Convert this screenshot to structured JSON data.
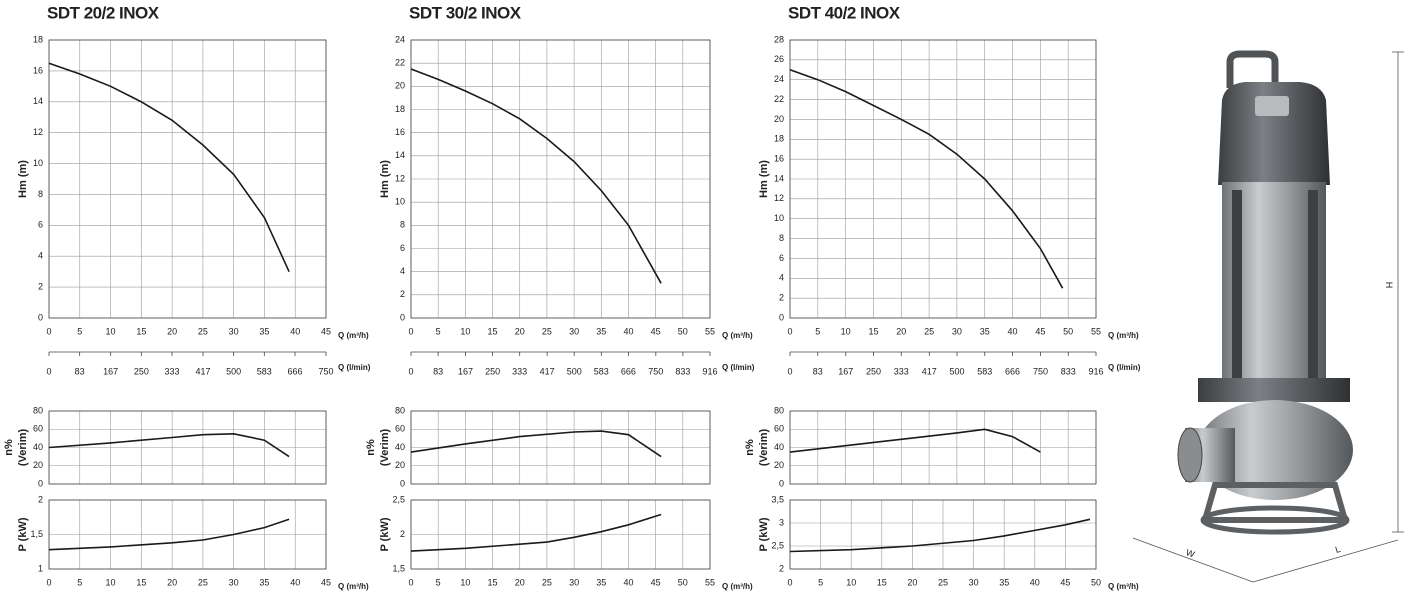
{
  "chart_data": [
    {
      "type": "line",
      "title": "SDT 20/2 INOX",
      "xlabel": "Q (m³/h)",
      "ylabel": [
        "Hm (m)"
      ],
      "color": "#1a1a1a",
      "grid": true,
      "x": [
        0,
        5,
        10,
        15,
        20,
        25,
        30,
        35,
        39
      ],
      "values": [
        16.5,
        15.8,
        15,
        14,
        12.8,
        11.2,
        9.3,
        6.5,
        3
      ],
      "xlim": [
        0,
        45
      ],
      "xticks": [
        0,
        5,
        10,
        15,
        20,
        25,
        30,
        35,
        40,
        45
      ],
      "ylim": [
        0,
        18
      ],
      "yticks": [
        0,
        2,
        4,
        6,
        8,
        10,
        12,
        14,
        16,
        18
      ],
      "x2label": "Q (l/min)",
      "x2lim": [
        0,
        750
      ],
      "x2ticks": [
        0,
        83,
        167,
        250,
        333,
        417,
        500,
        583,
        666,
        750
      ]
    },
    {
      "type": "line",
      "ylabel": [
        "n%",
        "(Verim)"
      ],
      "color": "#1a1a1a",
      "grid": true,
      "xtick_labels": false,
      "x": [
        0,
        10,
        20,
        25,
        30,
        35,
        39
      ],
      "values": [
        40,
        45,
        51,
        54,
        55,
        48,
        30
      ],
      "xlim": [
        0,
        45
      ],
      "xticks": [
        0,
        5,
        10,
        15,
        20,
        25,
        30,
        35,
        40,
        45
      ],
      "ylim": [
        0,
        80
      ],
      "yticks": [
        0,
        20,
        40,
        60,
        80
      ]
    },
    {
      "type": "line",
      "xlabel": "Q (m³/h)",
      "ylabel": [
        "P  (kW)"
      ],
      "color": "#1a1a1a",
      "grid": true,
      "x": [
        0,
        10,
        20,
        25,
        30,
        35,
        39
      ],
      "values": [
        1.28,
        1.32,
        1.38,
        1.42,
        1.5,
        1.6,
        1.72
      ],
      "xlim": [
        0,
        45
      ],
      "xticks": [
        0,
        5,
        10,
        15,
        20,
        25,
        30,
        35,
        40,
        45
      ],
      "ylim": [
        1,
        2
      ],
      "yticks": [
        1,
        {
          "value": 1.5,
          "label": "1,5"
        },
        2
      ]
    },
    {
      "type": "line",
      "title": "SDT 30/2 INOX",
      "xlabel": "Q (m³/h)",
      "ylabel": [
        "Hm (m)"
      ],
      "color": "#1a1a1a",
      "grid": true,
      "x": [
        0,
        5,
        10,
        15,
        20,
        25,
        30,
        35,
        40,
        43,
        46
      ],
      "values": [
        21.5,
        20.6,
        19.6,
        18.5,
        17.2,
        15.5,
        13.5,
        11,
        8,
        5.5,
        3
      ],
      "xlim": [
        0,
        55
      ],
      "xticks": [
        0,
        5,
        10,
        15,
        20,
        25,
        30,
        35,
        40,
        45,
        50,
        55
      ],
      "ylim": [
        0,
        24
      ],
      "yticks": [
        0,
        2,
        4,
        6,
        8,
        10,
        12,
        14,
        16,
        18,
        20,
        22,
        24
      ],
      "x2label": "Q (l/min)",
      "x2lim": [
        0,
        916
      ],
      "x2ticks": [
        0,
        83,
        167,
        250,
        333,
        417,
        500,
        583,
        666,
        750,
        833,
        916
      ]
    },
    {
      "type": "line",
      "ylabel": [
        "n%",
        "(Verim)"
      ],
      "color": "#1a1a1a",
      "grid": true,
      "xtick_labels": false,
      "x": [
        0,
        10,
        20,
        30,
        35,
        40,
        46
      ],
      "values": [
        35,
        44,
        52,
        57,
        58,
        54,
        30
      ],
      "xlim": [
        0,
        55
      ],
      "xticks": [
        0,
        5,
        10,
        15,
        20,
        25,
        30,
        35,
        40,
        45,
        50,
        55
      ],
      "ylim": [
        0,
        80
      ],
      "yticks": [
        0,
        20,
        40,
        60,
        80
      ]
    },
    {
      "type": "line",
      "xlabel": "Q (m³/h)",
      "ylabel": [
        "P  (kW)"
      ],
      "color": "#1a1a1a",
      "grid": true,
      "x": [
        0,
        10,
        20,
        25,
        30,
        35,
        40,
        46
      ],
      "values": [
        1.76,
        1.8,
        1.86,
        1.89,
        1.96,
        2.04,
        2.14,
        2.29
      ],
      "xlim": [
        0,
        55
      ],
      "xticks": [
        0,
        5,
        10,
        15,
        20,
        25,
        30,
        35,
        40,
        45,
        50,
        55
      ],
      "ylim": [
        1.5,
        2.5
      ],
      "yticks": [
        {
          "value": 1.5,
          "label": "1,5"
        },
        2,
        {
          "value": 2.5,
          "label": "2,5"
        }
      ]
    },
    {
      "type": "line",
      "title": "SDT 40/2 INOX",
      "xlabel": "Q (m³/h)",
      "ylabel": [
        "Hm (m)"
      ],
      "color": "#1a1a1a",
      "grid": true,
      "x": [
        0,
        5,
        10,
        15,
        20,
        25,
        30,
        35,
        40,
        45,
        49
      ],
      "values": [
        25,
        24,
        22.8,
        21.4,
        20,
        18.5,
        16.5,
        14,
        10.8,
        7,
        3
      ],
      "xlim": [
        0,
        55
      ],
      "xticks": [
        0,
        5,
        10,
        15,
        20,
        25,
        30,
        35,
        40,
        45,
        50,
        55
      ],
      "ylim": [
        0,
        28
      ],
      "yticks": [
        0,
        2,
        4,
        6,
        8,
        10,
        12,
        14,
        16,
        18,
        20,
        22,
        24,
        26,
        28
      ],
      "x2label": "Q (l/min)",
      "x2lim": [
        0,
        916
      ],
      "x2ticks": [
        0,
        83,
        167,
        250,
        333,
        417,
        500,
        583,
        666,
        750,
        833,
        916
      ]
    },
    {
      "type": "line",
      "ylabel": [
        "n%",
        "(Verim)"
      ],
      "color": "#1a1a1a",
      "grid": true,
      "xtick_labels": false,
      "x": [
        0,
        10,
        20,
        30,
        35,
        40,
        45
      ],
      "values": [
        35,
        42,
        49,
        56,
        60,
        52,
        35
      ],
      "xlim": [
        0,
        55
      ],
      "xticks": [
        0,
        5,
        10,
        15,
        20,
        25,
        30,
        35,
        40,
        45,
        50,
        55
      ],
      "ylim": [
        0,
        80
      ],
      "yticks": [
        0,
        20,
        40,
        60,
        80
      ]
    },
    {
      "type": "line",
      "xlabel": "Q (m³/h)",
      "ylabel": [
        "P  (kW)"
      ],
      "color": "#1a1a1a",
      "grid": true,
      "x": [
        0,
        10,
        20,
        30,
        35,
        40,
        45,
        49
      ],
      "values": [
        2.38,
        2.42,
        2.5,
        2.62,
        2.72,
        2.84,
        2.96,
        3.08
      ],
      "xlim": [
        0,
        50
      ],
      "xticks": [
        0,
        5,
        10,
        15,
        20,
        25,
        30,
        35,
        40,
        45,
        50
      ],
      "ylim": [
        2,
        3.5
      ],
      "yticks": [
        2,
        {
          "value": 2.5,
          "label": "2,5"
        },
        3,
        {
          "value": 3.5,
          "label": "3,5"
        }
      ]
    }
  ],
  "dimensions": {
    "height": "H",
    "width": "W",
    "length": "L"
  }
}
